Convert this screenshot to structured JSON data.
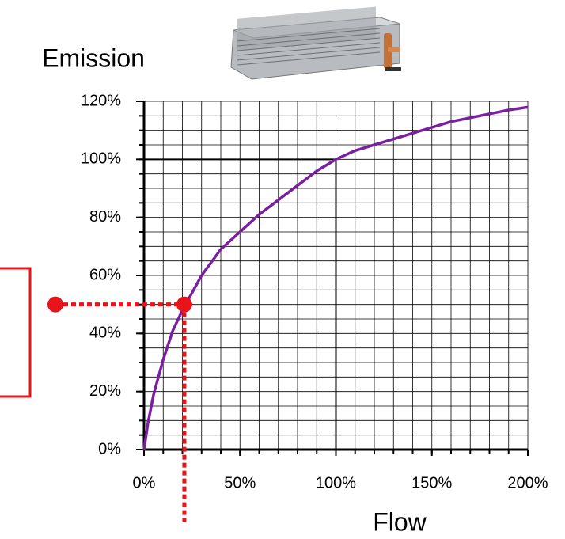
{
  "chart_data": {
    "type": "line",
    "y_label": "Emission",
    "x_label": "Flow",
    "x": [
      0,
      2,
      5,
      10,
      15,
      20,
      30,
      40,
      50,
      60,
      70,
      80,
      90,
      100,
      110,
      125,
      140,
      150,
      160,
      175,
      190,
      200
    ],
    "series": [
      {
        "color": "#7a1fa0",
        "values": [
          0,
          9,
          19,
          31,
          41,
          48,
          60,
          69,
          75,
          81,
          86,
          91,
          96,
          100,
          103,
          106,
          109,
          111,
          113,
          115,
          117,
          118
        ]
      }
    ],
    "xlim": [
      0,
      200
    ],
    "ylim": [
      0,
      120
    ],
    "xticks": [
      {
        "value": 0,
        "label": "0%"
      },
      {
        "value": 50,
        "label": "50%"
      },
      {
        "value": 100,
        "label": "100%"
      },
      {
        "value": 150,
        "label": "150%"
      },
      {
        "value": 200,
        "label": "200%"
      }
    ],
    "yticks": [
      {
        "value": 0,
        "label": "0%"
      },
      {
        "value": 20,
        "label": "20%"
      },
      {
        "value": 40,
        "label": "40%"
      },
      {
        "value": 60,
        "label": "60%"
      },
      {
        "value": 80,
        "label": "80%"
      },
      {
        "value": 100,
        "label": "100%"
      },
      {
        "value": 120,
        "label": "120%"
      }
    ],
    "xgrid": [
      10,
      20,
      30,
      40,
      50,
      60,
      70,
      80,
      90,
      100,
      110,
      120,
      130,
      140,
      150,
      160,
      170,
      180,
      190,
      200
    ],
    "ygrid": [
      5,
      10,
      15,
      20,
      25,
      30,
      35,
      40,
      45,
      50,
      55,
      60,
      65,
      70,
      75,
      80,
      85,
      90,
      95,
      100,
      105,
      110,
      115,
      120
    ],
    "grid": true,
    "reference_point": [
      100,
      100
    ],
    "operating_point": [
      21,
      50
    ],
    "marker_color": "#e8141b"
  }
}
